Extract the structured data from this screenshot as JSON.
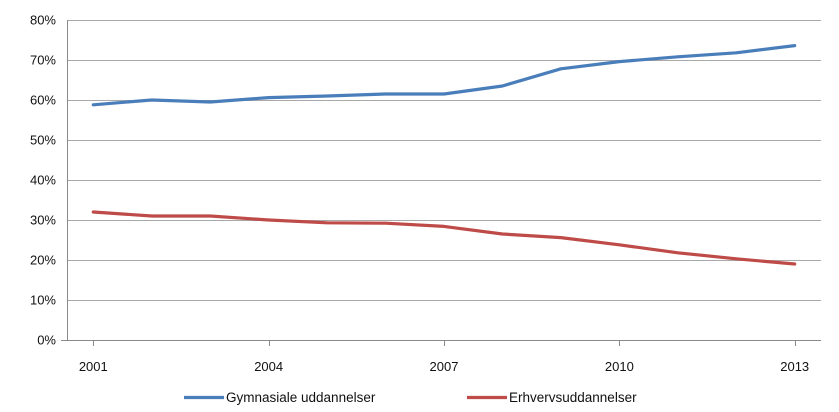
{
  "chart_data": {
    "type": "line",
    "title": "",
    "xlabel": "",
    "ylabel": "",
    "x": [
      2001,
      2002,
      2003,
      2004,
      2005,
      2006,
      2007,
      2008,
      2009,
      2010,
      2011,
      2012,
      2013
    ],
    "x_tick_values": [
      2001,
      2004,
      2007,
      2010,
      2013
    ],
    "x_tick_labels": [
      "2001",
      "2004",
      "2007",
      "2010",
      "2013"
    ],
    "ylim": [
      0,
      80
    ],
    "y_tick_values": [
      0,
      10,
      20,
      30,
      40,
      50,
      60,
      70,
      80
    ],
    "y_tick_labels": [
      "0%",
      "10%",
      "20%",
      "30%",
      "40%",
      "50%",
      "60%",
      "70%",
      "80%"
    ],
    "grid": true,
    "legend_position": "bottom",
    "series": [
      {
        "name": "Gymnasiale uddannelser",
        "color": "#4a7ebb",
        "values": [
          58.8,
          60.0,
          59.5,
          60.6,
          61.0,
          61.5,
          61.5,
          63.5,
          67.8,
          69.6,
          70.8,
          71.8,
          73.6
        ]
      },
      {
        "name": "Erhvervsuddannelser",
        "color": "#be4b48",
        "values": [
          32.0,
          31.0,
          31.0,
          30.0,
          29.3,
          29.2,
          28.4,
          26.5,
          25.6,
          23.8,
          21.8,
          20.3,
          19.0
        ]
      }
    ]
  }
}
